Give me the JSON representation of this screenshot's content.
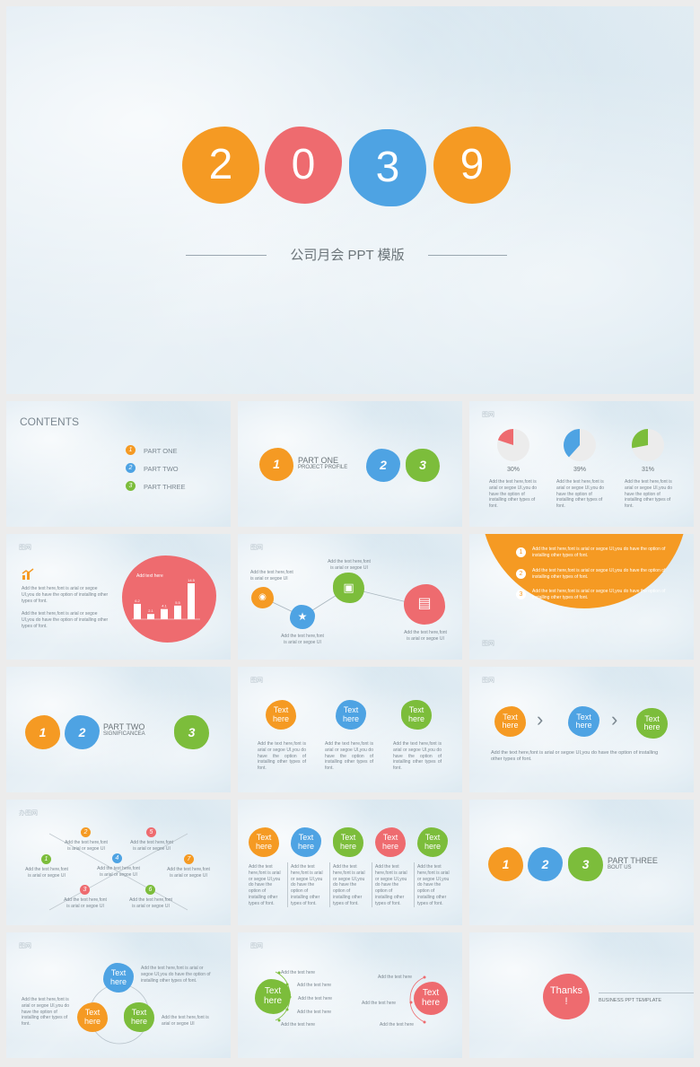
{
  "cover": {
    "digits": [
      "2",
      "0",
      "3",
      "9"
    ],
    "subtitle": "公司月会 PPT 模版"
  },
  "colors": {
    "orange": "#f59a23",
    "red": "#ee6b6f",
    "blue": "#4ea3e3",
    "green": "#7cbd3b"
  },
  "slide_tag": "图网",
  "contents": {
    "title": "CONTENTS",
    "items": [
      {
        "num": "1",
        "label": "PART ONE"
      },
      {
        "num": "2",
        "label": "PART TWO"
      },
      {
        "num": "3",
        "label": "PART THREE"
      }
    ]
  },
  "part_one": {
    "n1": "1",
    "title": "PART ONE",
    "subtitle": "PROJECT PROFILE",
    "n2": "2",
    "n3": "3"
  },
  "pies": {
    "items": [
      {
        "value": "30%",
        "text": "Add the text here,font is arial or segoe UI,you do have the option of installing other types of font."
      },
      {
        "value": "39%",
        "text": "Add the text here,font is arial or segoe UI,you do have the option of installing other types of font."
      },
      {
        "value": "31%",
        "text": "Add the text here,font is arial or segoe UI,you do have the option of installing other types of font."
      }
    ]
  },
  "bars_slide": {
    "text1": "Add the text here,font is arial or segoe UI,you do have the option of installing other types of font.",
    "text2": "Add the text here,font is arial or segoe UI,you do have the option of installing other types of font.",
    "blob_label": "Add text here",
    "bar_values": [
      "6.2",
      "2.1",
      "4.1",
      "5.5",
      "14.5"
    ]
  },
  "network": {
    "n1": "Add the text here,font is arial or segoe UI",
    "n2": "Add the text here,font is arial or segoe UI",
    "n3": "Add the text here,font is arial or segoe UI",
    "n4": "Add the text here,font is arial or segoe UI"
  },
  "orange_slide": {
    "items": [
      {
        "num": "1",
        "text": "Add the text here,font is arial or segoe UI,you do have the option of installing other types of font."
      },
      {
        "num": "2",
        "text": "Add the text here,font is arial or segoe UI,you do have the option of installing other types of font."
      },
      {
        "num": "3",
        "text": "Add the text here,font is arial or segoe UI,you do have the option of installing other types of font."
      }
    ]
  },
  "part_two": {
    "n1": "1",
    "n2": "2",
    "title": "PART TWO",
    "subtitle": "SIGNIFICANCEA",
    "n3": "3"
  },
  "three_text": {
    "label": "Text here",
    "desc": "Add the text here,font is arial or segoe UI,you do have the option of installing other types of font."
  },
  "arrows": {
    "label": "Text here",
    "desc": "Add the text here,font is arial or segoe UI,you do have the option of installing other types of font."
  },
  "cross": {
    "tag": "办图网",
    "items": [
      {
        "num": "1",
        "text": "Add the text here,font is arial or segoe UI"
      },
      {
        "num": "2",
        "text": "Add the text here,font is arial or segoe UI"
      },
      {
        "num": "3",
        "text": "Add the text here,font is arial or segoe UI"
      },
      {
        "num": "4",
        "text": "Add the text here,font is arial or segoe UI"
      },
      {
        "num": "5",
        "text": "Add the text here,font is arial or segoe UI"
      },
      {
        "num": "6",
        "text": "Add the text here,font is arial or segoe UI"
      },
      {
        "num": "7",
        "text": "Add the text here,font is arial or segoe UI"
      }
    ]
  },
  "five_cols": {
    "label": "Text here",
    "desc": "Add the text here,font is arial or segoe UI,you do have the option of installing other types of font."
  },
  "part_three": {
    "n1": "1",
    "n2": "2",
    "n3": "3",
    "title": "PART THREE",
    "subtitle": "BOUT US"
  },
  "cycle": {
    "label": "Text here",
    "left": "Add the text here,font is arial or segoe UI,you do have the option of installing other types of font.",
    "top_right": "Add the text here,font is arial or segoe UI,you do have the option of installing other types of font.",
    "bottom_right": "Add the text here,font is arial or segoe UI"
  },
  "branches": {
    "label": "Text here",
    "item": "Add the text here"
  },
  "thanks": {
    "label": "Thanks !",
    "subtitle": "BUSINESS  PPT  TEMPLATE"
  }
}
